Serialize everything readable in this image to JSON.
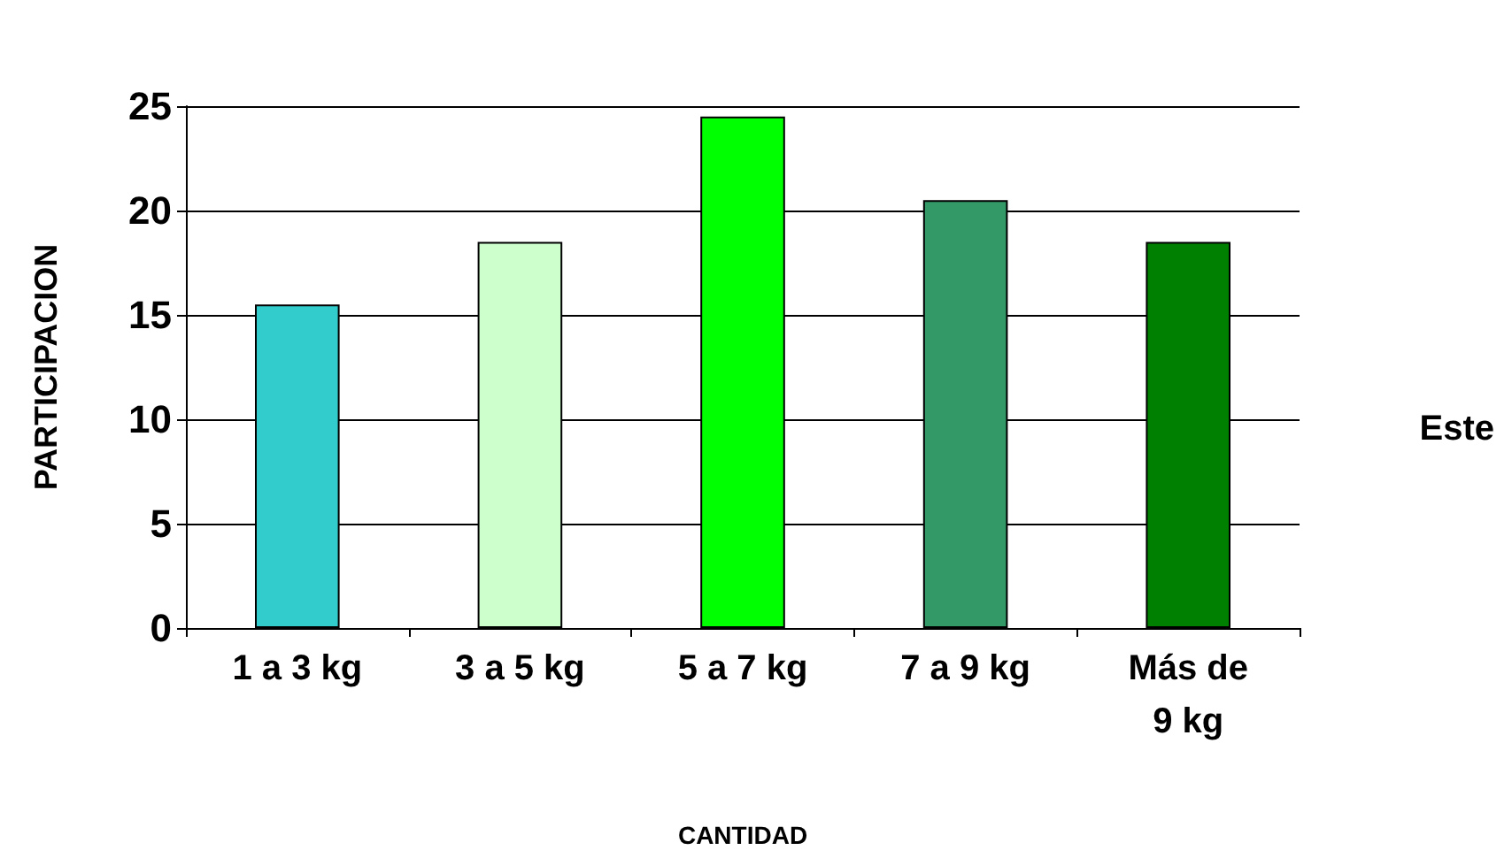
{
  "chart_data": {
    "type": "bar",
    "xlabel": "CANTIDAD",
    "ylabel": "PARTICIPACION",
    "categories": [
      "1 a 3 kg",
      "3 a 5 kg",
      "5 a 7 kg",
      "7 a 9 kg",
      "Más de\n9 kg"
    ],
    "series": [
      {
        "name": "Este",
        "values": [
          15.5,
          18.5,
          24.5,
          20.5,
          18.5
        ],
        "colors": [
          "#33cccc",
          "#ccffcc",
          "#00ff00",
          "#339966",
          "#008000"
        ]
      }
    ],
    "ylim": [
      0,
      25
    ],
    "yticks": [
      0,
      5,
      10,
      15,
      20,
      25
    ],
    "grid": "y",
    "legend": "right"
  }
}
